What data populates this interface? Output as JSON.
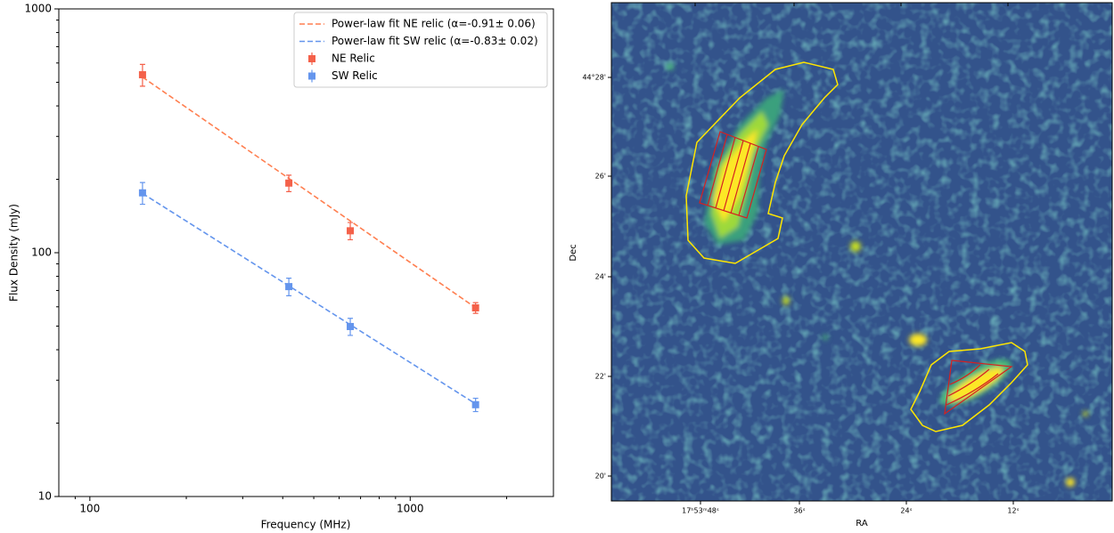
{
  "chart_data": [
    {
      "type": "line",
      "xlabel": "Frequency (MHz)",
      "ylabel": "Flux Density (mJy)",
      "xscale": "log",
      "yscale": "log",
      "xlim": [
        80,
        2800
      ],
      "ylim": [
        10,
        1000
      ],
      "xticks": [
        100,
        1000
      ],
      "yticks": [
        10,
        100,
        1000
      ],
      "xminorticks": [
        90,
        200,
        300,
        400,
        500,
        600,
        700,
        800,
        900,
        2000
      ],
      "yminorticks": [
        20,
        30,
        40,
        50,
        60,
        70,
        80,
        90,
        200,
        300,
        400,
        500,
        600,
        700,
        800,
        900
      ],
      "legend": "upper right",
      "series": [
        {
          "name": "Power-law fit NE relic (α=-0.91± 0.06)",
          "kind": "fit",
          "color": "#ff7f50",
          "linestyle": "dashed",
          "x": [
            146,
            1600
          ],
          "values": [
            525,
            59.5
          ]
        },
        {
          "name": "Power-law fit SW relic (α=-0.83± 0.02)",
          "kind": "fit",
          "color": "#6495ed",
          "linestyle": "dashed",
          "x": [
            146,
            1600
          ],
          "values": [
            175,
            24
          ]
        },
        {
          "name": "NE Relic",
          "kind": "errorbar",
          "color": "#f4614a",
          "marker": "square",
          "x": [
            146,
            418,
            650,
            1600
          ],
          "values": [
            537,
            193,
            123,
            59.4
          ],
          "errors": [
            55,
            15,
            10,
            3
          ]
        },
        {
          "name": "SW Relic",
          "kind": "errorbar",
          "color": "#6495ed",
          "marker": "square",
          "x": [
            146,
            418,
            650,
            1600
          ],
          "values": [
            176,
            72.6,
            49.8,
            23.8
          ],
          "errors": [
            18,
            6,
            4,
            1.5
          ]
        }
      ]
    },
    {
      "type": "image",
      "xlabel": "RA",
      "ylabel": "Dec",
      "xticklabels": [
        "17ʰ53ᵐ48ˢ",
        "36ˢ",
        "24ˢ",
        "12ˢ"
      ],
      "yticklabels": [
        "44°28'",
        "26'",
        "24'",
        "22'",
        "20'"
      ]
    }
  ]
}
